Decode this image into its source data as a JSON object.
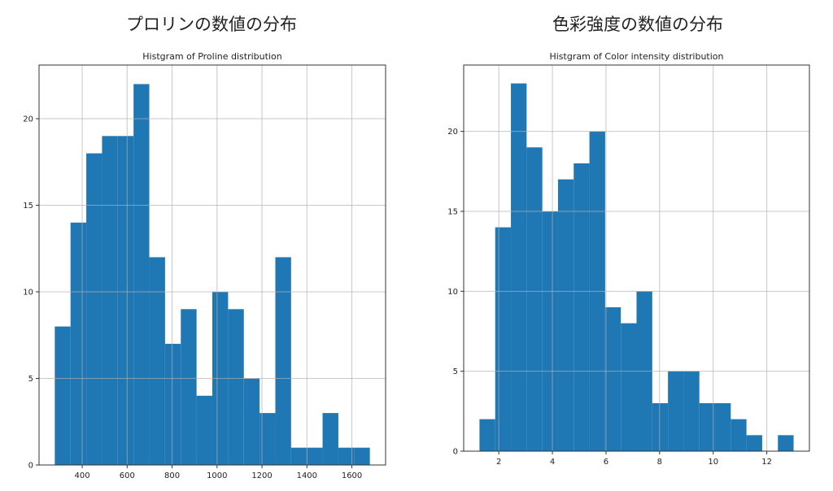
{
  "figure_titles": [
    "プロリンの数値の分布",
    "色彩強度の数値の分布"
  ],
  "chart_data": [
    {
      "type": "bar",
      "title": "Histgram of Proline distribution",
      "xlabel": "",
      "ylabel": "",
      "bin_range": [
        278,
        1680
      ],
      "bins": 20,
      "values": [
        8,
        14,
        18,
        19,
        19,
        22,
        12,
        7,
        9,
        4,
        10,
        9,
        5,
        3,
        12,
        1,
        1,
        3,
        1,
        1
      ],
      "xlim": [
        208,
        1750
      ],
      "ylim": [
        0,
        23.1
      ],
      "xticks": [
        400,
        600,
        800,
        1000,
        1200,
        1400,
        1600
      ],
      "yticks": [
        0,
        5,
        10,
        15,
        20
      ],
      "grid": true,
      "color": "#1f77b4"
    },
    {
      "type": "bar",
      "title": "Histgram of Color intensity distribution",
      "xlabel": "",
      "ylabel": "",
      "bin_range": [
        1.28,
        13.0
      ],
      "bins": 20,
      "values": [
        2,
        14,
        23,
        19,
        15,
        17,
        18,
        20,
        9,
        8,
        10,
        3,
        5,
        5,
        3,
        3,
        2,
        1,
        0,
        1
      ],
      "xlim": [
        0.69,
        13.59
      ],
      "ylim": [
        0,
        24.15
      ],
      "xticks": [
        2,
        4,
        6,
        8,
        10,
        12
      ],
      "yticks": [
        0,
        5,
        10,
        15,
        20
      ],
      "grid": true,
      "color": "#1f77b4"
    }
  ]
}
